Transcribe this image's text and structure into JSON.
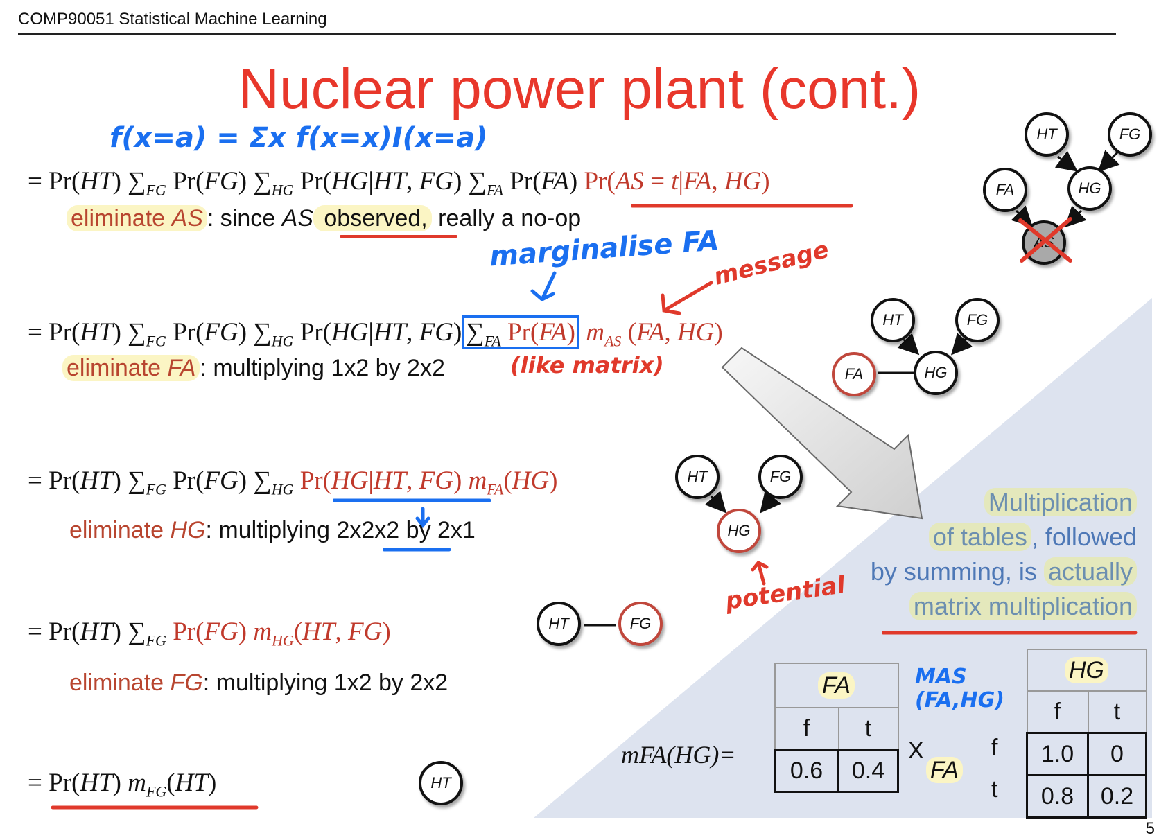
{
  "header": {
    "course": "COMP90051 Statistical Machine Learning",
    "page": "5"
  },
  "title": "Nuclear power plant (cont.)",
  "equations": [
    {
      "pre": "= Pr(",
      "i1": "HT",
      "mid": ") ∑",
      "s1": "FG",
      "a": " Pr(",
      "i2": "FG",
      "b": ") ∑",
      "s2": "HG",
      "c": " Pr(",
      "i3": "HG|HT, FG",
      "d": ") ∑",
      "s3": "FA",
      "e": " Pr(",
      "i4": "FA",
      "f": ")",
      "tail": " Pr(AS = t|FA, HG)"
    },
    {
      "text": "= Pr(HT) ∑FG Pr(FG) ∑HG Pr(HG|HT, FG) ∑FA Pr(FA) mAS (FA, HG)"
    },
    {
      "text": "= Pr(HT) ∑FG Pr(FG) ∑HG Pr(HG|HT, FG) mFA(HG)"
    },
    {
      "text": "= Pr(HT) ∑FG Pr(FG) mHG(HT, FG)"
    },
    {
      "text": "= Pr(HT) mFG(HT)"
    }
  ],
  "steps": [
    {
      "kw": "eliminate ",
      "var": "AS",
      "rest": ": since ",
      "var2": "AS",
      "obs": " observed,",
      "tail": " really a no-op"
    },
    {
      "kw": "eliminate ",
      "var": "FA",
      "rest": ": multiplying 1x2 by 2x2"
    },
    {
      "kw": "eliminate ",
      "var": "HG",
      "rest": ": multiplying ",
      "ul": "2x2x2",
      "tail": " by 2x1"
    },
    {
      "kw": "eliminate ",
      "var": "FG",
      "rest": ": multiplying 1x2 by 2x2"
    }
  ],
  "handwritten": {
    "formula": "f(x=a) = Σx f(x=x)I(x=a)",
    "marginalise": "marginalise FA",
    "message": "message",
    "like_matrix": "(like matrix)",
    "potential": "potential",
    "mas": "MAS (FA,HG)"
  },
  "graphs": {
    "g1": [
      "HT",
      "FG",
      "FA",
      "HG",
      "AS"
    ],
    "g2": [
      "HT",
      "FG",
      "FA",
      "HG"
    ],
    "g3": [
      "HT",
      "FG",
      "HG"
    ],
    "g4": [
      "HT",
      "FG"
    ],
    "g5": [
      "HT"
    ]
  },
  "callout": {
    "line1": "Multiplication",
    "line2a": "of tables",
    ", ": "",
    "line2b": ", followed",
    "line3a": "by summing, is ",
    "line3b": "actually",
    "line4": "matrix multiplication"
  },
  "tables": {
    "mfa_label": "mFA(HG)=",
    "fa_header": "FA",
    "fa_cols": [
      "f",
      "t"
    ],
    "fa_values": [
      "0.6",
      "0.4"
    ],
    "times": "X",
    "hg_header": "HG",
    "hg_cols": [
      "f",
      "t"
    ],
    "row_var": "FA",
    "row_labels": [
      "f",
      "t"
    ],
    "hg_values": [
      [
        "1.0",
        "0"
      ],
      [
        "0.8",
        "0.2"
      ]
    ]
  }
}
